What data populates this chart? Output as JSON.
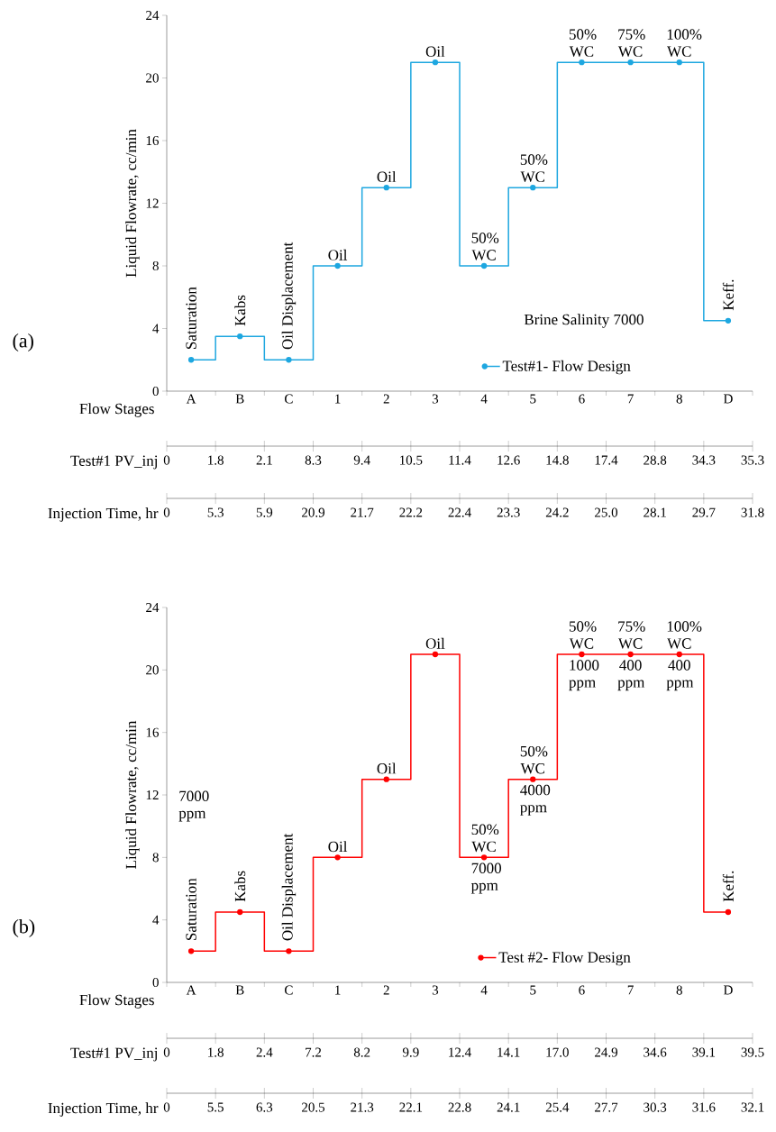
{
  "chart_data": [
    {
      "type": "step",
      "title": "(a)",
      "xlabel": "Flow Stages",
      "ylabel": "Liquid Flowrate, cc/min",
      "categories": [
        "A",
        "B",
        "C",
        "1",
        "2",
        "3",
        "4",
        "5",
        "6",
        "7",
        "8",
        "D"
      ],
      "series": [
        {
          "name": "Test#1- Flow Design",
          "color": "#1ea7e0",
          "values": [
            2,
            3.5,
            2,
            8,
            13,
            21,
            8,
            13,
            21,
            21,
            21,
            4.5
          ]
        }
      ],
      "ylim": [
        0,
        24
      ],
      "yticks": [
        0,
        4,
        8,
        12,
        16,
        20,
        24
      ],
      "marker": "circle",
      "line_style": "solid",
      "legend": "bottom right",
      "annotations": [
        {
          "text": "Saturation",
          "x": "A",
          "y": 2
        },
        {
          "text": "Kabs",
          "x": "B",
          "y": 3.5
        },
        {
          "text": "Oil Displacement",
          "x": "C",
          "y": 2
        },
        {
          "text": "Keff.",
          "x": "D",
          "y": 4.5
        },
        {
          "text": "Oil",
          "x": "1",
          "y": 8
        },
        {
          "text": "Oil",
          "x": "2",
          "y": 13
        },
        {
          "text": "Oil",
          "x": "3",
          "y": 21
        },
        {
          "text": "50% WC",
          "x": "4",
          "y": 8
        },
        {
          "text": "50% WC",
          "x": "5",
          "y": 13
        },
        {
          "text": "50% WC",
          "x": "6",
          "y": 21
        },
        {
          "text": "75% WC",
          "x": "7",
          "y": 21
        },
        {
          "text": "100% WC",
          "x": "8",
          "y": 21
        },
        "Test#1 PV_inj",
        "0",
        "1.8",
        "2.1",
        "8.3",
        "9.4",
        "10.5",
        "11.4",
        "12.6",
        "14.8",
        "17.4",
        "28.8",
        "34.3",
        "35.3",
        "Injection Time, hr",
        "0",
        "5.3",
        "5.9",
        "20.9",
        "21.7",
        "22.2",
        "22.4",
        "23.3",
        "24.2",
        "25.0",
        "28.1",
        "29.7",
        "31.8",
        "Brine Salinity 7000"
      ]
    },
    {
      "type": "step",
      "title": "(b)",
      "xlabel": "Flow Stages",
      "ylabel": "Liquid Flowrate, cc/min",
      "categories": [
        "A",
        "B",
        "C",
        "1",
        "2",
        "3",
        "4",
        "5",
        "6",
        "7",
        "8",
        "D"
      ],
      "series": [
        {
          "name": "Test #2- Flow Design",
          "color": "#ff0000",
          "values": [
            2,
            4.5,
            2,
            8,
            13,
            21,
            8,
            13,
            21,
            21,
            21,
            4.5
          ]
        }
      ],
      "ylim": [
        0,
        24
      ],
      "yticks": [
        0,
        4,
        8,
        12,
        16,
        20,
        24
      ],
      "marker": "circle",
      "line_style": "solid",
      "legend": "bottom right",
      "annotations": [
        {
          "text": "Saturation",
          "x": "A",
          "y": 2
        },
        {
          "text": "Kabs",
          "x": "B",
          "y": 4.5
        },
        {
          "text": "Oil Displacement",
          "x": "C",
          "y": 2
        },
        {
          "text": "Keff.",
          "x": "D",
          "y": 4.5
        },
        {
          "text": "Oil",
          "x": "1",
          "y": 8
        },
        {
          "text": "Oil",
          "x": "2",
          "y": 13
        },
        {
          "text": "Oil",
          "x": "3",
          "y": 21
        },
        {
          "text": "50% WC",
          "x": "4",
          "y": 8
        },
        {
          "text": "50% WC",
          "x": "5",
          "y": 13
        },
        {
          "text": "50% WC",
          "x": "6",
          "y": 21
        },
        {
          "text": "75% WC",
          "x": "7",
          "y": 21
        },
        {
          "text": "100% WC",
          "x": "8",
          "y": 21
        },
        {
          "text": "7000 ppm",
          "x": "4",
          "y": 8
        },
        {
          "text": "4000 ppm",
          "x": "5",
          "y": 13
        },
        {
          "text": "1000 ppm",
          "x": "6",
          "y": 21
        },
        {
          "text": "400 ppm",
          "x": "7",
          "y": 21
        },
        {
          "text": "400 ppm",
          "x": "8",
          "y": 21
        },
        "Test#1 PV_inj",
        "0",
        "1.8",
        "2.4",
        "7.2",
        "8.2",
        "9.9",
        "12.4",
        "14.1",
        "17.0",
        "24.9",
        "34.6",
        "39.1",
        "39.5",
        "Injection Time, hr",
        "0",
        "5.5",
        "6.3",
        "20.5",
        "21.3",
        "22.1",
        "22.8",
        "24.1",
        "25.4",
        "27.7",
        "30.3",
        "31.6",
        "32.1",
        "7000 ppm"
      ]
    }
  ]
}
